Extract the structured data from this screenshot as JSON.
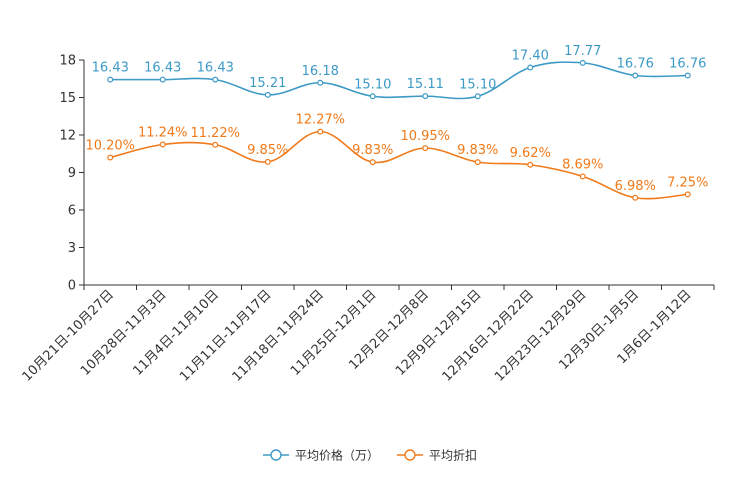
{
  "chart_data": {
    "type": "line",
    "title": "",
    "xlabel": "",
    "ylabel": "",
    "categories": [
      "10月21日-10月27日",
      "10月28日-11月3日",
      "11月4日-11月10日",
      "11月11日-11月17日",
      "11月18日-11月24日",
      "11月25日-12月1日",
      "12月2日-12月8日",
      "12月9日-12月15日",
      "12月16日-12月22日",
      "12月23日-12月29日",
      "12月30日-1月5日",
      "1月6日-1月12日"
    ],
    "ylim": [
      0,
      18
    ],
    "yticks": [
      0,
      3,
      6,
      9,
      12,
      15,
      18
    ],
    "grid": false,
    "legend_position": "bottom",
    "series": [
      {
        "name": "平均价格（万）",
        "color": "#3d9ac6",
        "values": [
          16.43,
          16.43,
          16.43,
          15.21,
          16.18,
          15.1,
          15.11,
          15.1,
          17.4,
          17.77,
          16.76,
          16.76
        ],
        "labels": [
          "16.43",
          "16.43",
          "16.43",
          "15.21",
          "16.18",
          "15.10",
          "15.11",
          "15.10",
          "17.40",
          "17.77",
          "16.76",
          "16.76"
        ]
      },
      {
        "name": "平均折扣",
        "color": "#f07a1a",
        "values": [
          10.2,
          11.24,
          11.22,
          9.85,
          12.27,
          9.83,
          10.95,
          9.83,
          9.62,
          8.69,
          6.98,
          7.25
        ],
        "labels": [
          "10.20%",
          "11.24%",
          "11.22%",
          "9.85%",
          "12.27%",
          "9.83%",
          "10.95%",
          "9.83%",
          "9.62%",
          "8.69%",
          "6.98%",
          "7.25%"
        ]
      }
    ]
  }
}
